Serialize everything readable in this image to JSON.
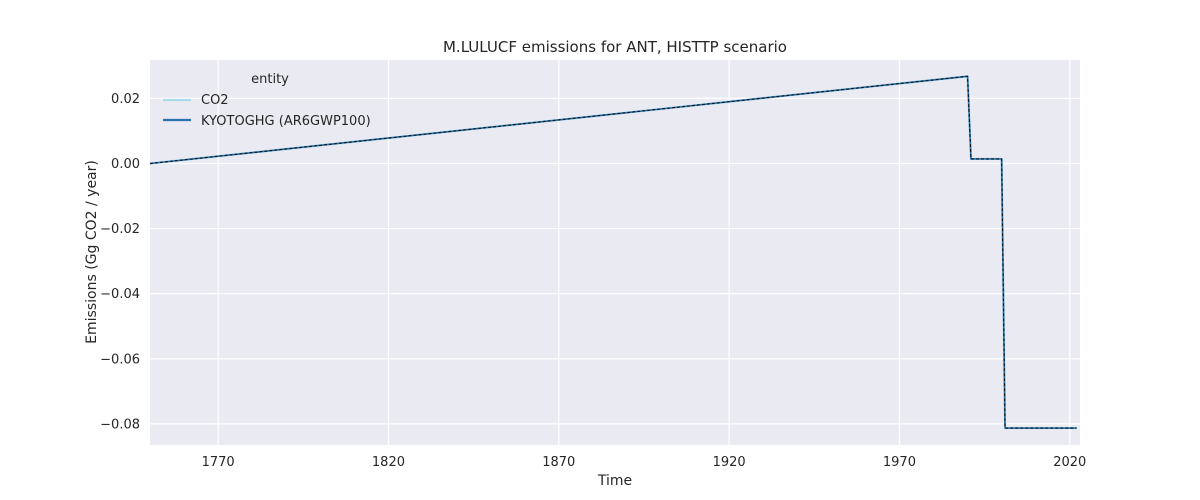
{
  "chart_data": {
    "type": "line",
    "title": "M.LULUCF emissions for ANT, HISTTP scenario",
    "xlabel": "Time",
    "ylabel": "Emissions (Gg CO2 / year)",
    "xlim": [
      1750,
      2023
    ],
    "ylim": [
      -0.0865,
      0.0318
    ],
    "xticks": [
      1770,
      1820,
      1870,
      1920,
      1970,
      2020
    ],
    "yticks": [
      0.02,
      0.0,
      -0.02,
      -0.04,
      -0.06,
      -0.08
    ],
    "ytick_labels": [
      "0.02",
      "0.00",
      "−0.02",
      "−0.04",
      "−0.06",
      "−0.08"
    ],
    "grid": true,
    "legend": {
      "title": "entity",
      "placement": "top-left"
    },
    "series": [
      {
        "name": "CO2",
        "color": "#a6dcea",
        "style": "solid",
        "x": [
          1750,
          1990,
          1991,
          2000,
          2001,
          2022
        ],
        "y": [
          0.0,
          0.0268,
          0.0014,
          0.0014,
          -0.0813,
          -0.0813
        ]
      },
      {
        "name": "KYOTOGHG (AR6GWP100)",
        "color": "#2872b0",
        "style": "solid",
        "x": [
          1750,
          1990,
          1991,
          2000,
          2001,
          2022
        ],
        "y": [
          0.0,
          0.0268,
          0.0014,
          0.0014,
          -0.0813,
          -0.0813
        ]
      },
      {
        "name": "",
        "color": "#111111",
        "style": "dashed",
        "legend": false,
        "x": [
          1750,
          1990,
          1991,
          2000,
          2001,
          2022
        ],
        "y": [
          0.0,
          0.0268,
          0.0014,
          0.0014,
          -0.0813,
          -0.0813
        ]
      }
    ]
  }
}
